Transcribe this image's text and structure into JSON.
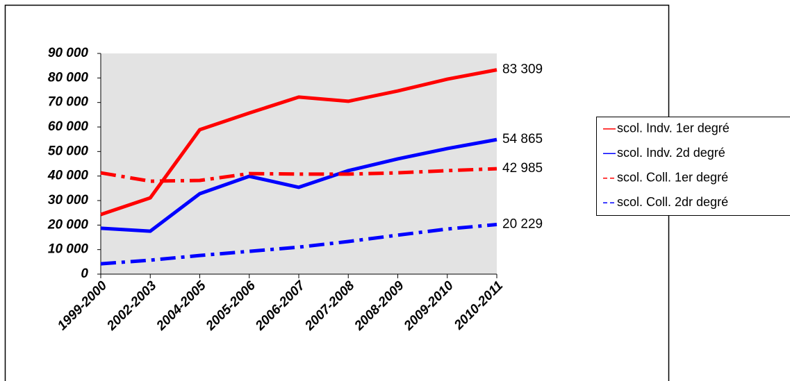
{
  "chart_data": {
    "type": "line",
    "categories": [
      "1999-2000",
      "2002-2003",
      "2004-2005",
      "2005-2006",
      "2006-2007",
      "2007-2008",
      "2008-2009",
      "2009-2010",
      "2010-2011"
    ],
    "series": [
      {
        "name": "scol. Indv. 1er degré",
        "color": "#ff0000",
        "linestyle": "solid",
        "values": [
          24300,
          31100,
          58900,
          65700,
          72200,
          70500,
          74700,
          79500,
          83309
        ],
        "value_labels": [
          null,
          null,
          null,
          null,
          null,
          null,
          null,
          null,
          "83 309"
        ]
      },
      {
        "name": "scol. Indv. 2d degré",
        "color": "#0000ff",
        "linestyle": "solid",
        "values": [
          18700,
          17500,
          32800,
          39900,
          35400,
          42200,
          47000,
          51200,
          54865
        ],
        "value_labels": [
          null,
          null,
          null,
          null,
          null,
          null,
          null,
          null,
          "54 865"
        ]
      },
      {
        "name": "scol. Coll. 1er degré",
        "color": "#ff0000",
        "linestyle": "dashdot",
        "values": [
          41300,
          37900,
          38200,
          41000,
          40800,
          40800,
          41300,
          42200,
          42985
        ],
        "value_labels": [
          null,
          null,
          null,
          null,
          null,
          null,
          null,
          null,
          "42 985"
        ]
      },
      {
        "name": "scol. Coll. 2dr degré",
        "color": "#0000ff",
        "linestyle": "dashdot",
        "values": [
          4200,
          5700,
          7600,
          9300,
          11000,
          13300,
          15900,
          18400,
          20229
        ],
        "value_labels": [
          null,
          null,
          null,
          null,
          null,
          null,
          null,
          null,
          "20 229"
        ]
      }
    ],
    "ylim": [
      0,
      90000
    ],
    "yticks": [
      {
        "value": 0,
        "label": "0"
      },
      {
        "value": 10000,
        "label": "10 000"
      },
      {
        "value": 20000,
        "label": "20 000"
      },
      {
        "value": 30000,
        "label": "30 000"
      },
      {
        "value": 40000,
        "label": "40 000"
      },
      {
        "value": 50000,
        "label": "50 000"
      },
      {
        "value": 60000,
        "label": "60 000"
      },
      {
        "value": 70000,
        "label": "70 000"
      },
      {
        "value": 80000,
        "label": "80 000"
      },
      {
        "value": 90000,
        "label": "90 000"
      }
    ],
    "grid": false,
    "legend": "right",
    "plot_background": "#e3e3e3"
  }
}
